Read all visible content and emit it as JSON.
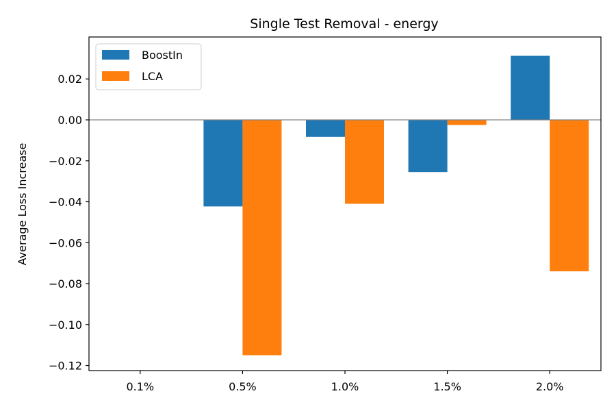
{
  "chart_data": {
    "type": "bar",
    "title": "Single Test Removal - energy",
    "xlabel": "",
    "ylabel": "Average Loss Increase",
    "categories": [
      "0.1%",
      "0.5%",
      "1.0%",
      "1.5%",
      "2.0%"
    ],
    "series": [
      {
        "name": "BoostIn",
        "color": "#1f77b4",
        "values": [
          0,
          -0.0423,
          -0.0083,
          -0.0255,
          0.0313
        ]
      },
      {
        "name": "LCA",
        "color": "#ff7f0e",
        "values": [
          0,
          -0.115,
          -0.041,
          -0.0025,
          -0.074
        ]
      }
    ],
    "ylim": [
      -0.1225,
      0.0405
    ],
    "yticks": [
      0.02,
      0.0,
      -0.02,
      -0.04,
      -0.06,
      -0.08,
      -0.1,
      -0.12
    ],
    "ytick_labels": [
      "0.02",
      "0.00",
      "−0.02",
      "−0.04",
      "−0.06",
      "−0.08",
      "−0.10",
      "−0.12"
    ],
    "zero_line": true,
    "grid": false,
    "legend_position": "top-left"
  }
}
